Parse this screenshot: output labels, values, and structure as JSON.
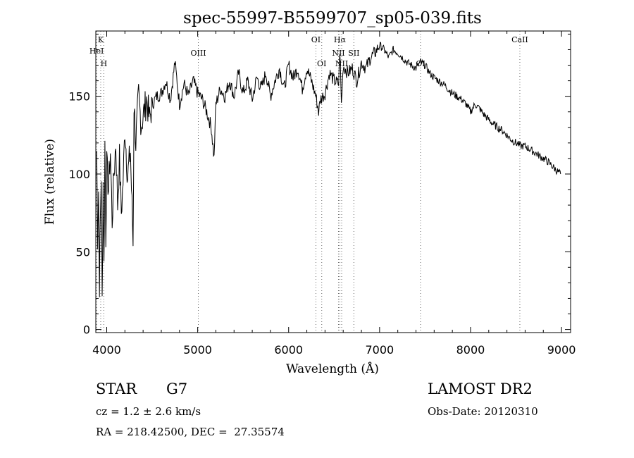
{
  "chart_data": {
    "type": "line",
    "title": "spec-55997-B5599707_sp05-039.fits",
    "xlabel": "Wavelength (Å)",
    "ylabel": "Flux (relative)",
    "xlim": [
      3880,
      9100
    ],
    "ylim": [
      -2,
      192
    ],
    "x_ticks": [
      4000,
      5000,
      6000,
      7000,
      8000,
      9000
    ],
    "y_ticks": [
      0,
      50,
      100,
      150
    ],
    "grid": false,
    "series": [
      {
        "x": [
          3890,
          3900,
          3910,
          3920,
          3930,
          3940,
          3950,
          3960,
          3970,
          3980,
          3990,
          4000,
          4020,
          4040,
          4060,
          4080,
          4100,
          4120,
          4140,
          4160,
          4180,
          4200,
          4230,
          4260,
          4290,
          4300,
          4320,
          4350,
          4380,
          4410,
          4440,
          4470,
          4500,
          4550,
          4600,
          4650,
          4700,
          4750,
          4800,
          4850,
          4900,
          4950,
          5000,
          5050,
          5100,
          5150,
          5180,
          5200,
          5250,
          5300,
          5350,
          5400,
          5450,
          5500,
          5550,
          5600,
          5650,
          5700,
          5750,
          5800,
          5850,
          5900,
          5950,
          6000,
          6050,
          6100,
          6150,
          6200,
          6250,
          6300,
          6330,
          6350,
          6400,
          6450,
          6500,
          6550,
          6563,
          6580,
          6600,
          6650,
          6700,
          6750,
          6800,
          6850,
          6900,
          6950,
          7000,
          7050,
          7100,
          7150,
          7200,
          7250,
          7300,
          7350,
          7400,
          7450,
          7500,
          7550,
          7600,
          7650,
          7700,
          7750,
          7800,
          7850,
          7900,
          7950,
          8000,
          8050,
          8100,
          8150,
          8200,
          8250,
          8300,
          8350,
          8400,
          8450,
          8500,
          8550,
          8600,
          8650,
          8700,
          8750,
          8800,
          8850,
          8900,
          8950,
          8990
        ],
        "y": [
          115,
          60,
          90,
          30,
          72,
          100,
          18,
          95,
          40,
          120,
          60,
          105,
          90,
          115,
          70,
          100,
          120,
          80,
          110,
          75,
          95,
          130,
          98,
          115,
          55,
          145,
          120,
          150,
          132,
          140,
          148,
          135,
          145,
          150,
          152,
          160,
          148,
          172,
          145,
          158,
          150,
          160,
          152,
          148,
          140,
          130,
          110,
          145,
          155,
          150,
          160,
          150,
          165,
          152,
          160,
          148,
          162,
          155,
          165,
          150,
          160,
          168,
          155,
          170,
          162,
          168,
          155,
          168,
          160,
          150,
          140,
          148,
          152,
          165,
          160,
          158,
          180,
          145,
          170,
          165,
          168,
          160,
          172,
          168,
          175,
          178,
          183,
          180,
          175,
          180,
          178,
          175,
          172,
          170,
          168,
          172,
          170,
          165,
          162,
          160,
          158,
          155,
          152,
          150,
          148,
          145,
          140,
          145,
          142,
          138,
          135,
          132,
          130,
          128,
          125,
          122,
          120,
          118,
          118,
          116,
          114,
          112,
          110,
          108,
          105,
          102,
          100
        ]
      }
    ],
    "lines": [
      {
        "label": "K",
        "x": 3934
      },
      {
        "label": "H",
        "x": 3968
      },
      {
        "label": "HeI",
        "x": 3889
      },
      {
        "label": "OIII",
        "x": 5007
      },
      {
        "label": "OI",
        "x": 6300
      },
      {
        "label": "OI",
        "x": 6364
      },
      {
        "label": "Hα",
        "x": 6563
      },
      {
        "label": "NII",
        "x": 6548
      },
      {
        "label": "NII",
        "x": 6583
      },
      {
        "label": "SII",
        "x": 6717
      },
      {
        "label": "OI",
        "x": 7450
      },
      {
        "label": "CaII",
        "x": 8542
      }
    ]
  },
  "info": {
    "object_class": "STAR",
    "subclass": "G7",
    "survey": "LAMOST DR2",
    "cz": "cz = 1.2 ± 2.6 km/s",
    "obs_date": "Obs-Date: 20120310",
    "coords": "RA = 218.42500, DEC =  27.35574"
  }
}
